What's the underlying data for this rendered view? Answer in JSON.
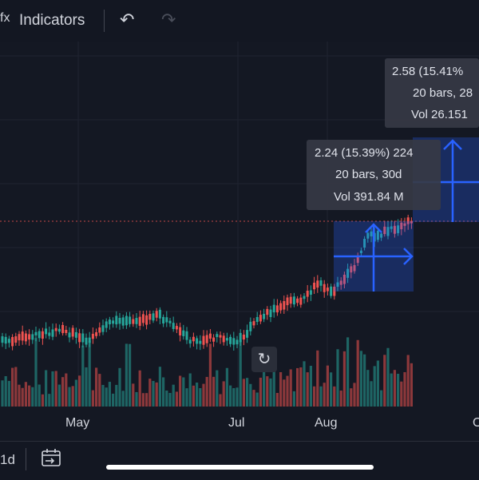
{
  "toolbar": {
    "fx_label": "fx",
    "indicators_label": "Indicators",
    "undo_icon": "undo-icon",
    "redo_icon": "redo-icon"
  },
  "xaxis": {
    "labels": [
      "May",
      "Jul",
      "Aug",
      "O"
    ]
  },
  "measure_1": {
    "line1": "2.24 (15.39%) 224",
    "line2": "20 bars, 30d",
    "line3": "Vol 391.84 M"
  },
  "measure_2": {
    "line1": "2.58 (15.41%",
    "line2": "20 bars, 28",
    "line3": "Vol 26.151"
  },
  "bottombar": {
    "interval_label": "1d",
    "goto_date_icon": "calendar-goto-icon"
  },
  "colors": {
    "up": "#26a69a",
    "down": "#ef5350",
    "measure": "#2962ff"
  },
  "chart_data": {
    "type": "candlestick",
    "x_labels": [
      "May",
      "Jul",
      "Aug"
    ],
    "measure_ranges": [
      {
        "change": "2.24",
        "percent": "15.39%",
        "bars": 20,
        "days": "30d",
        "volume": "391.84 M"
      },
      {
        "change": "2.58",
        "percent": "15.41%",
        "bars": 20
      }
    ]
  }
}
